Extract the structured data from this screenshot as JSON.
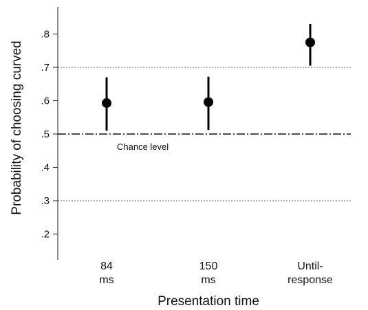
{
  "chart_data": {
    "type": "scatter",
    "xlabel": "Presentation time",
    "ylabel": "Probability of choosing curved",
    "ylim": [
      0.15,
      0.9
    ],
    "yticks": [
      {
        "value": 0.2,
        "label": ".2"
      },
      {
        "value": 0.3,
        "label": ".3"
      },
      {
        "value": 0.4,
        "label": ".4"
      },
      {
        "value": 0.5,
        "label": ".5"
      },
      {
        "value": 0.6,
        "label": ".6"
      },
      {
        "value": 0.7,
        "label": ".7"
      },
      {
        "value": 0.8,
        "label": ".8"
      }
    ],
    "categories": [
      {
        "line1": "84",
        "line2": "ms"
      },
      {
        "line1": "150",
        "line2": "ms"
      },
      {
        "line1": "Until-",
        "line2": "response"
      }
    ],
    "points": [
      {
        "mean": 0.593,
        "low": 0.51,
        "high": 0.67
      },
      {
        "mean": 0.596,
        "low": 0.512,
        "high": 0.672
      },
      {
        "mean": 0.775,
        "low": 0.705,
        "high": 0.83
      }
    ],
    "reference_lines": [
      {
        "value": 0.7,
        "style": "dotted"
      },
      {
        "value": 0.3,
        "style": "dotted"
      },
      {
        "value": 0.5,
        "style": "dash-dot",
        "label": "Chance level"
      }
    ],
    "grid": false,
    "legend": "none"
  }
}
